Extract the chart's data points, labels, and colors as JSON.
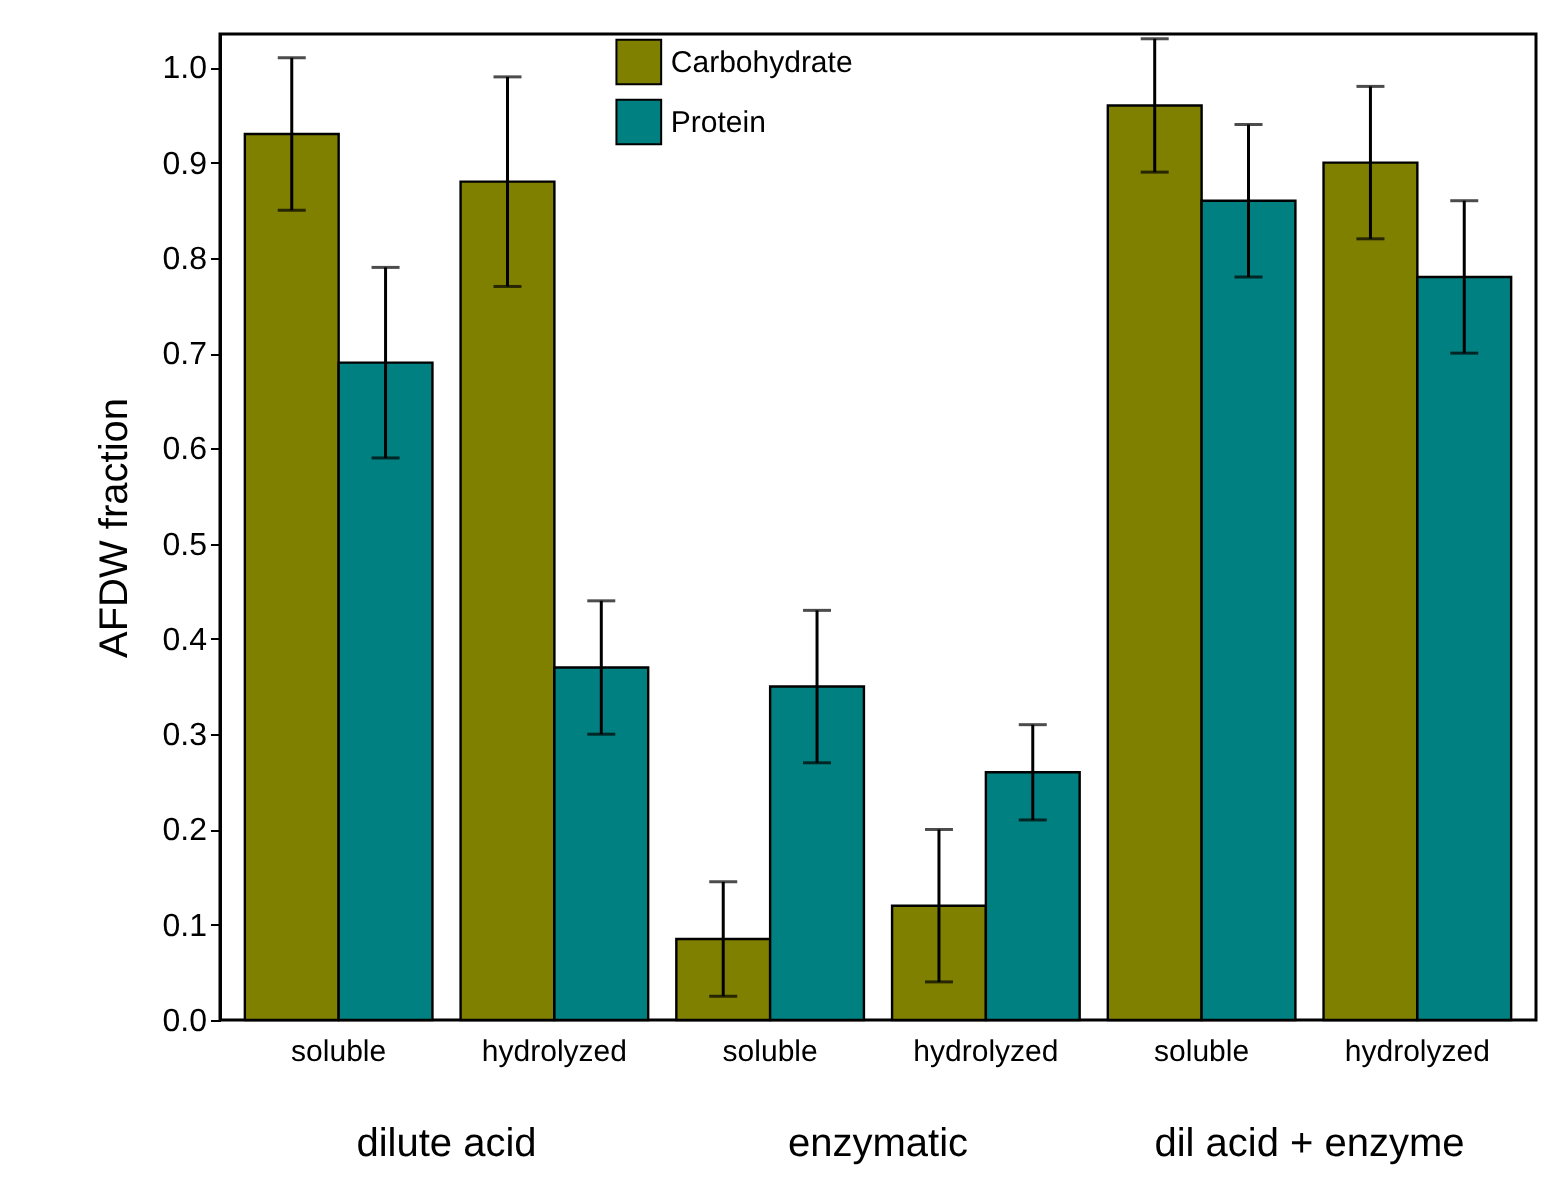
{
  "chart_data": {
    "type": "bar",
    "ylabel": "AFDW fraction",
    "categories": [
      "soluble",
      "hydrolyzed",
      "soluble",
      "hydrolyzed",
      "soluble",
      "hydrolyzed"
    ],
    "series": [
      {
        "name": "Carbohydrate",
        "color": "#808000",
        "values": [
          0.93,
          0.88,
          0.085,
          0.12,
          0.96,
          0.9
        ],
        "errors": [
          [
            0.85,
            1.01
          ],
          [
            0.77,
            0.99
          ],
          [
            0.025,
            0.145
          ],
          [
            0.04,
            0.2
          ],
          [
            0.89,
            1.03
          ],
          [
            0.82,
            0.98
          ]
        ]
      },
      {
        "name": "Protein",
        "color": "#008080",
        "values": [
          0.69,
          0.37,
          0.35,
          0.26,
          0.86,
          0.78
        ],
        "errors": [
          [
            0.59,
            0.79
          ],
          [
            0.3,
            0.44
          ],
          [
            0.27,
            0.43
          ],
          [
            0.21,
            0.31
          ],
          [
            0.78,
            0.94
          ],
          [
            0.7,
            0.86
          ]
        ]
      }
    ],
    "annotations": [
      "dilute acid",
      "enzymatic",
      "dil acid + enzyme"
    ],
    "ylim": [
      0,
      1.035
    ],
    "yticks": [
      {
        "value": 0,
        "label": "0.0"
      },
      0.1,
      0.2,
      0.3,
      0.4,
      0.5,
      0.6,
      0.7,
      0.8,
      0.9,
      {
        "value": 1,
        "label": "1.0"
      }
    ],
    "legend": "top"
  }
}
